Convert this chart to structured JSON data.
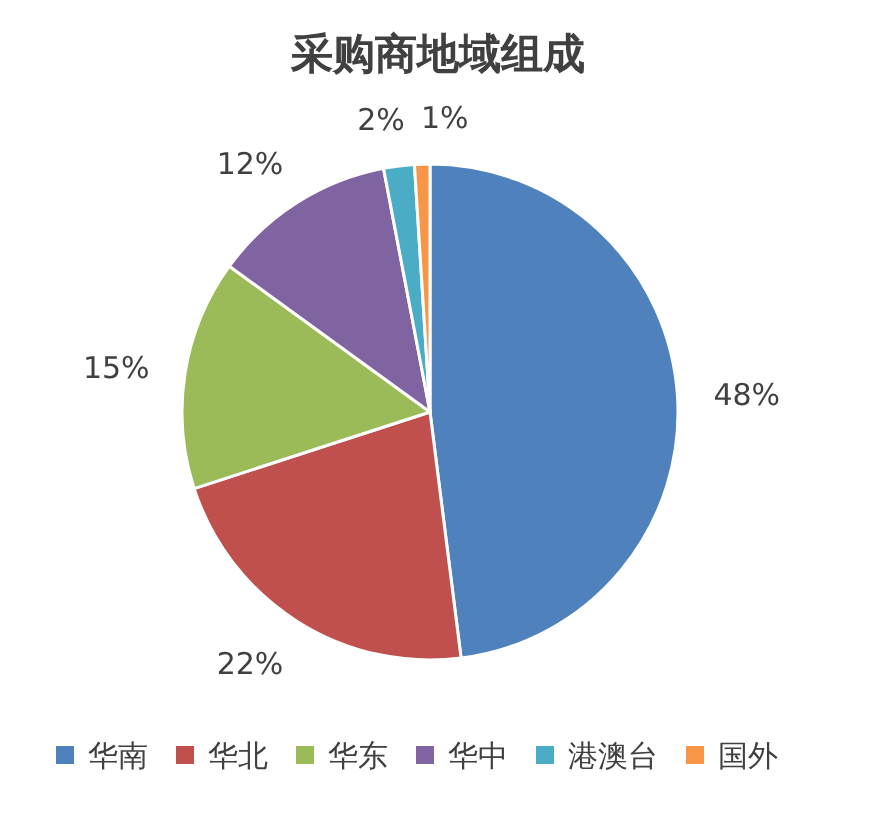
{
  "chart_data": {
    "type": "pie",
    "title": "采购商地域组成",
    "categories": [
      "华南",
      "华北",
      "华东",
      "华中",
      "港澳台",
      "国外"
    ],
    "values": [
      48,
      22,
      15,
      12,
      2,
      1
    ],
    "colors": [
      "#4f81bd",
      "#c0504d",
      "#9bbb59",
      "#8064a2",
      "#4bacc6",
      "#f79646"
    ],
    "value_labels": [
      "48%",
      "22%",
      "15%",
      "12%",
      "2%",
      "1%"
    ],
    "legend": "bottom"
  }
}
